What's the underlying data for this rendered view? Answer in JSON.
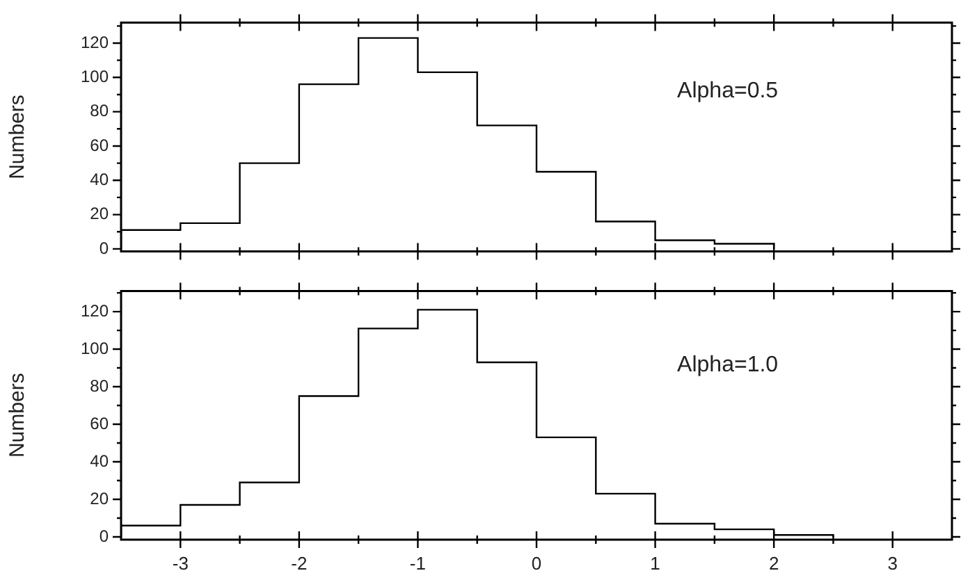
{
  "chart_data": [
    {
      "type": "histogram",
      "ylabel": "Numbers",
      "annotations": [
        "Alpha=0.5"
      ],
      "bins": [
        -3.5,
        -3,
        -2.5,
        -2,
        -1.5,
        -1,
        -0.5,
        0,
        0.5,
        1,
        1.5,
        2
      ],
      "values": [
        11,
        15,
        50,
        96,
        123,
        103,
        72,
        45,
        16,
        5,
        3
      ],
      "color": "#000000",
      "xlim": [
        -3.5,
        3.5
      ],
      "xticks": [
        -3,
        -2,
        -1,
        0,
        1,
        2,
        3,
        {
          "value": -2.5,
          "label": null
        },
        {
          "value": -1.5,
          "label": null
        },
        {
          "value": -0.5,
          "label": null
        },
        {
          "value": 0.5,
          "label": null
        },
        {
          "value": 1.5,
          "label": null
        },
        {
          "value": 2.5,
          "label": null
        }
      ],
      "ylim": [
        -1.5,
        132
      ],
      "yticks": [
        0,
        20,
        40,
        60,
        80,
        100,
        120,
        {
          "value": 10,
          "label": null
        },
        {
          "value": 30,
          "label": null
        },
        {
          "value": 50,
          "label": null
        },
        {
          "value": 70,
          "label": null
        },
        {
          "value": 90,
          "label": null
        },
        {
          "value": 110,
          "label": null
        },
        {
          "value": 130,
          "label": null
        }
      ],
      "grid": false,
      "legend": false,
      "tick_labels": "y"
    },
    {
      "type": "histogram",
      "ylabel": "Numbers",
      "annotations": [
        "Alpha=1.0"
      ],
      "bins": [
        -3.5,
        -3,
        -2.5,
        -2,
        -1.5,
        -1,
        -0.5,
        0,
        0.5,
        1,
        1.5,
        2,
        2.5
      ],
      "values": [
        6,
        17,
        29,
        75,
        111,
        121,
        93,
        53,
        23,
        7,
        4,
        1
      ],
      "color": "#000000",
      "xlim": [
        -3.5,
        3.5
      ],
      "xticks": [
        -3,
        -2,
        -1,
        0,
        1,
        2,
        3,
        {
          "value": -2.5,
          "label": null
        },
        {
          "value": -1.5,
          "label": null
        },
        {
          "value": -0.5,
          "label": null
        },
        {
          "value": 0.5,
          "label": null
        },
        {
          "value": 1.5,
          "label": null
        },
        {
          "value": 2.5,
          "label": null
        }
      ],
      "ylim": [
        -1.5,
        131
      ],
      "yticks": [
        0,
        20,
        40,
        60,
        80,
        100,
        120,
        {
          "value": 10,
          "label": null
        },
        {
          "value": 30,
          "label": null
        },
        {
          "value": 50,
          "label": null
        },
        {
          "value": 70,
          "label": null
        },
        {
          "value": 90,
          "label": null
        },
        {
          "value": 110,
          "label": null
        },
        {
          "value": 130,
          "label": null
        }
      ],
      "grid": false,
      "legend": false
    }
  ]
}
